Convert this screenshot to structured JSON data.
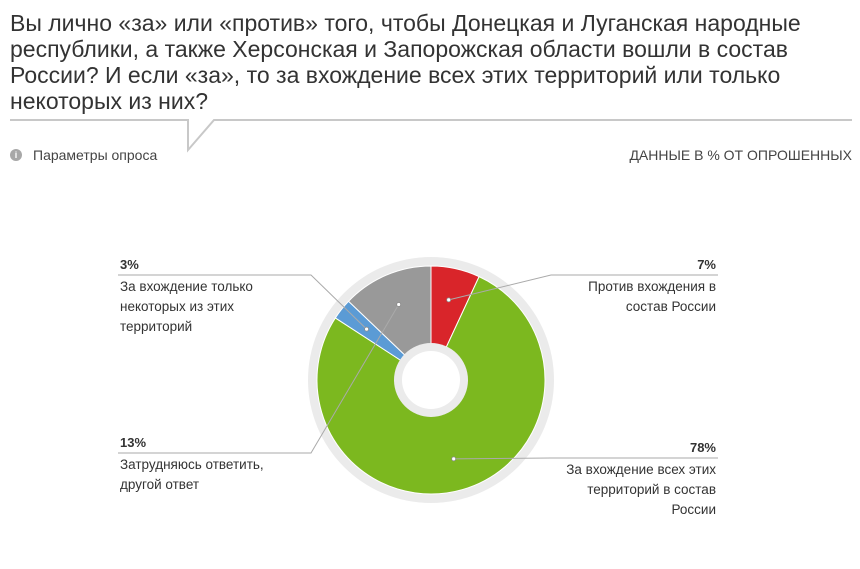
{
  "header": {
    "title": "Вы лично «за» или «против» того, чтобы Донецкая и Луганская народные республики, а также Херсонская и Запорожская области вошли в состав России? И если «за», то за вхождение всех этих территорий или только некоторых из них?",
    "params_label": "Параметры опроса",
    "info_icon_glyph": "i",
    "units_note": "ДАННЫЕ В % ОТ ОПРОШЕННЫХ"
  },
  "chart_data": {
    "type": "pie",
    "donut": true,
    "slices": [
      {
        "pct_label": "7%",
        "value": 7,
        "color": "#d9252a",
        "label_lines": [
          "Против вхождения в",
          "состав России"
        ],
        "side": "right"
      },
      {
        "pct_label": "78%",
        "value": 78,
        "color": "#7cb81f",
        "label_lines": [
          "За вхождение всех этих",
          "территорий в состав",
          "России"
        ],
        "side": "right"
      },
      {
        "pct_label": "3%",
        "value": 3,
        "color": "#5b9bd5",
        "label_lines": [
          "За вхождение только",
          "некоторых из этих",
          "территорий"
        ],
        "side": "left"
      },
      {
        "pct_label": "13%",
        "value": 13,
        "color": "#999999",
        "label_lines": [
          "Затрудняюсь ответить,",
          "другой ответ"
        ],
        "side": "left"
      }
    ]
  }
}
